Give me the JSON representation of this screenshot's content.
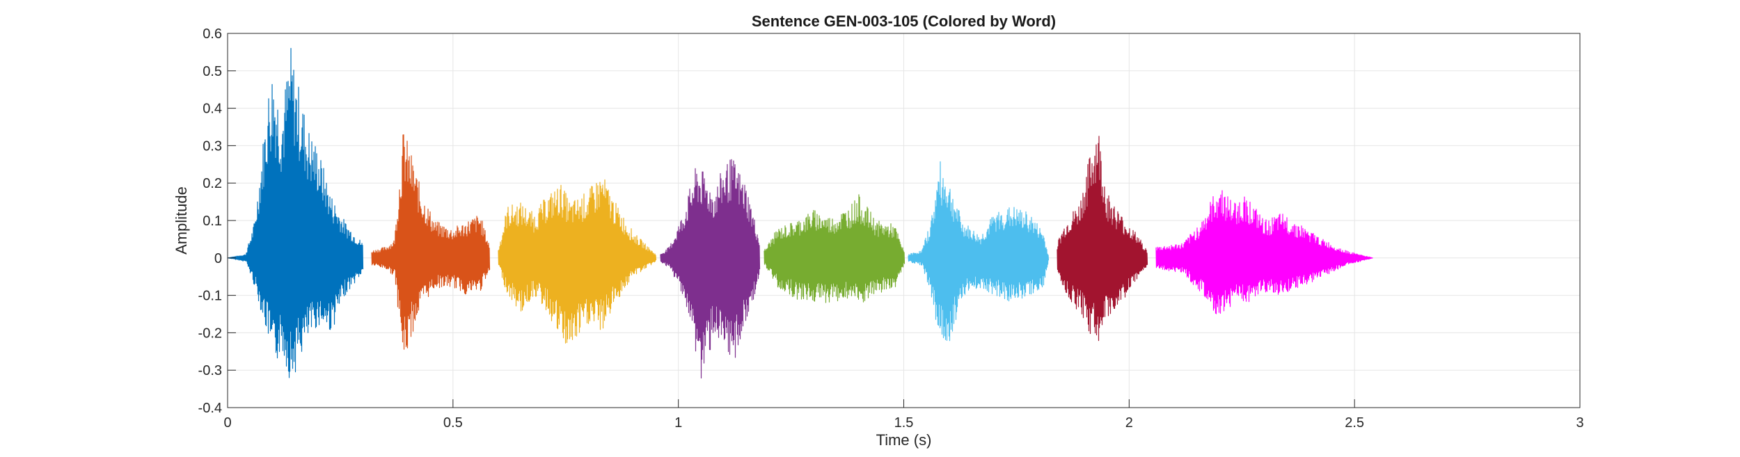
{
  "chart_data": {
    "type": "line",
    "title": "Sentence GEN-003-105 (Colored by Word)",
    "xlabel": "Time (s)",
    "ylabel": "Amplitude",
    "xlim": [
      0,
      3
    ],
    "ylim": [
      -0.4,
      0.6
    ],
    "xticks": [
      0,
      0.5,
      1,
      1.5,
      2,
      2.5,
      3
    ],
    "xtick_labels": [
      "0",
      "0.5",
      "1",
      "1.5",
      "2",
      "2.5",
      "3"
    ],
    "yticks": [
      -0.4,
      -0.3,
      -0.2,
      -0.1,
      0,
      0.1,
      0.2,
      0.3,
      0.4,
      0.5,
      0.6
    ],
    "ytick_labels": [
      "-0.4",
      "-0.3",
      "-0.2",
      "-0.1",
      "0",
      "0.1",
      "0.2",
      "0.3",
      "0.4",
      "0.5",
      "0.6"
    ],
    "grid": true,
    "series": [
      {
        "color": "#0072BD",
        "start": 0.0,
        "end": 0.3,
        "envelope": [
          [
            0.0,
            0.0,
            0.0
          ],
          [
            0.04,
            0.01,
            -0.01
          ],
          [
            0.06,
            0.1,
            -0.08
          ],
          [
            0.09,
            0.45,
            -0.22
          ],
          [
            0.1,
            0.52,
            -0.3
          ],
          [
            0.12,
            0.4,
            -0.25
          ],
          [
            0.14,
            0.57,
            -0.34
          ],
          [
            0.16,
            0.45,
            -0.27
          ],
          [
            0.18,
            0.35,
            -0.22
          ],
          [
            0.2,
            0.3,
            -0.18
          ],
          [
            0.23,
            0.17,
            -0.2
          ],
          [
            0.26,
            0.1,
            -0.1
          ],
          [
            0.3,
            0.04,
            -0.04
          ]
        ]
      },
      {
        "color": "#D95319",
        "start": 0.32,
        "end": 0.58,
        "envelope": [
          [
            0.32,
            0.02,
            -0.02
          ],
          [
            0.35,
            0.03,
            -0.03
          ],
          [
            0.37,
            0.05,
            -0.05
          ],
          [
            0.39,
            0.35,
            -0.29
          ],
          [
            0.41,
            0.27,
            -0.2
          ],
          [
            0.43,
            0.18,
            -0.13
          ],
          [
            0.46,
            0.1,
            -0.08
          ],
          [
            0.5,
            0.08,
            -0.08
          ],
          [
            0.53,
            0.1,
            -0.1
          ],
          [
            0.56,
            0.12,
            -0.09
          ],
          [
            0.58,
            0.04,
            -0.04
          ]
        ]
      },
      {
        "color": "#EDB120",
        "start": 0.6,
        "end": 0.95,
        "envelope": [
          [
            0.6,
            0.02,
            -0.02
          ],
          [
            0.62,
            0.14,
            -0.1
          ],
          [
            0.65,
            0.15,
            -0.15
          ],
          [
            0.68,
            0.12,
            -0.1
          ],
          [
            0.71,
            0.17,
            -0.15
          ],
          [
            0.74,
            0.2,
            -0.23
          ],
          [
            0.76,
            0.15,
            -0.25
          ],
          [
            0.8,
            0.18,
            -0.18
          ],
          [
            0.83,
            0.23,
            -0.2
          ],
          [
            0.86,
            0.15,
            -0.12
          ],
          [
            0.9,
            0.07,
            -0.05
          ],
          [
            0.95,
            0.01,
            -0.01
          ]
        ]
      },
      {
        "color": "#7E2F8E",
        "start": 0.96,
        "end": 1.18,
        "envelope": [
          [
            0.96,
            0.01,
            -0.01
          ],
          [
            0.98,
            0.03,
            -0.03
          ],
          [
            1.01,
            0.12,
            -0.1
          ],
          [
            1.04,
            0.25,
            -0.27
          ],
          [
            1.05,
            0.24,
            -0.34
          ],
          [
            1.08,
            0.18,
            -0.2
          ],
          [
            1.1,
            0.25,
            -0.28
          ],
          [
            1.12,
            0.27,
            -0.29
          ],
          [
            1.15,
            0.2,
            -0.18
          ],
          [
            1.18,
            0.05,
            -0.05
          ]
        ]
      },
      {
        "color": "#77AC30",
        "start": 1.19,
        "end": 1.5,
        "envelope": [
          [
            1.19,
            0.02,
            -0.02
          ],
          [
            1.22,
            0.08,
            -0.08
          ],
          [
            1.26,
            0.1,
            -0.11
          ],
          [
            1.3,
            0.13,
            -0.12
          ],
          [
            1.34,
            0.11,
            -0.12
          ],
          [
            1.38,
            0.14,
            -0.11
          ],
          [
            1.4,
            0.17,
            -0.13
          ],
          [
            1.44,
            0.1,
            -0.1
          ],
          [
            1.48,
            0.09,
            -0.08
          ],
          [
            1.5,
            0.02,
            -0.02
          ]
        ]
      },
      {
        "color": "#4DBEEE",
        "start": 1.51,
        "end": 1.82,
        "envelope": [
          [
            1.51,
            0.01,
            -0.01
          ],
          [
            1.54,
            0.02,
            -0.02
          ],
          [
            1.56,
            0.1,
            -0.1
          ],
          [
            1.58,
            0.26,
            -0.23
          ],
          [
            1.6,
            0.21,
            -0.23
          ],
          [
            1.63,
            0.1,
            -0.1
          ],
          [
            1.67,
            0.06,
            -0.08
          ],
          [
            1.7,
            0.12,
            -0.1
          ],
          [
            1.74,
            0.14,
            -0.12
          ],
          [
            1.78,
            0.12,
            -0.1
          ],
          [
            1.81,
            0.07,
            -0.08
          ],
          [
            1.82,
            0.01,
            -0.01
          ]
        ]
      },
      {
        "color": "#A2142F",
        "start": 1.84,
        "end": 2.04,
        "envelope": [
          [
            1.84,
            0.04,
            -0.04
          ],
          [
            1.86,
            0.1,
            -0.1
          ],
          [
            1.89,
            0.15,
            -0.15
          ],
          [
            1.91,
            0.26,
            -0.2
          ],
          [
            1.93,
            0.37,
            -0.23
          ],
          [
            1.95,
            0.18,
            -0.17
          ],
          [
            1.98,
            0.12,
            -0.12
          ],
          [
            2.02,
            0.06,
            -0.06
          ],
          [
            2.04,
            0.02,
            -0.02
          ]
        ]
      },
      {
        "color": "#FF00FF",
        "start": 2.06,
        "end": 2.54,
        "envelope": [
          [
            2.06,
            0.03,
            -0.03
          ],
          [
            2.12,
            0.04,
            -0.04
          ],
          [
            2.16,
            0.1,
            -0.1
          ],
          [
            2.2,
            0.2,
            -0.17
          ],
          [
            2.23,
            0.15,
            -0.12
          ],
          [
            2.26,
            0.17,
            -0.12
          ],
          [
            2.3,
            0.1,
            -0.1
          ],
          [
            2.34,
            0.12,
            -0.1
          ],
          [
            2.38,
            0.09,
            -0.08
          ],
          [
            2.43,
            0.05,
            -0.05
          ],
          [
            2.48,
            0.02,
            -0.02
          ],
          [
            2.54,
            0.0,
            0.0
          ]
        ]
      }
    ]
  }
}
